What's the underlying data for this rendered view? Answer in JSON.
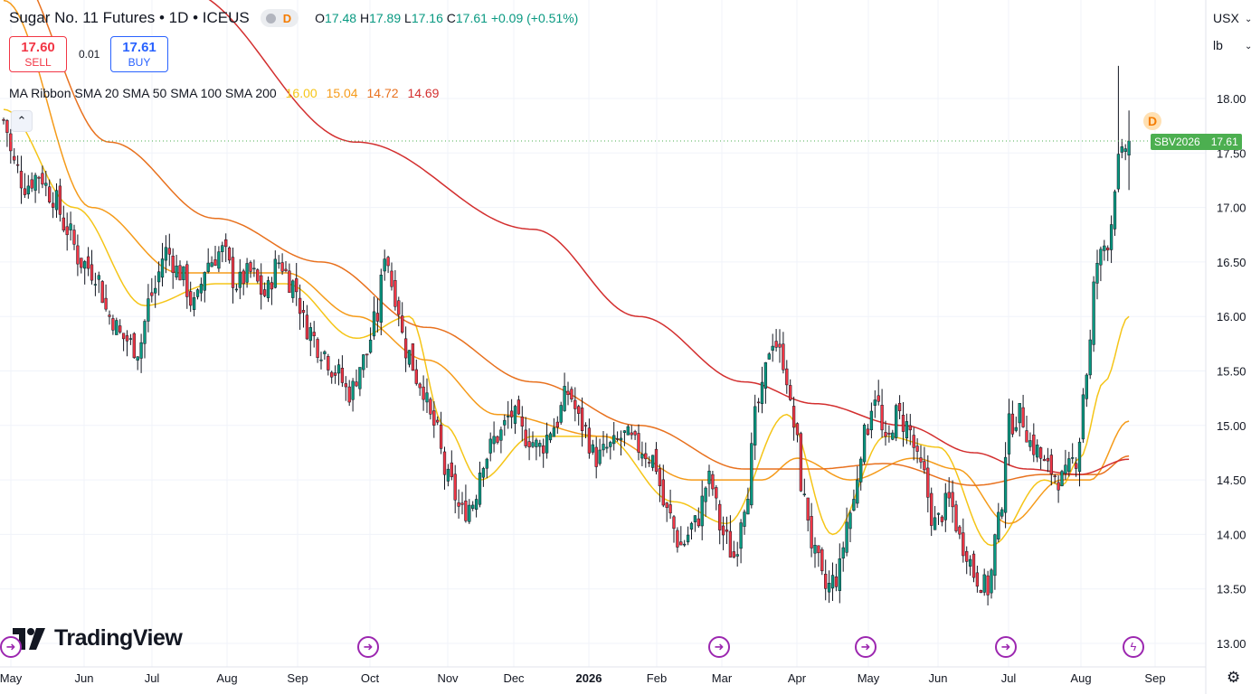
{
  "header": {
    "symbol_title": "Sugar No. 11 Futures • 1D • ICEUS",
    "delay_badge": "D",
    "ohlc": {
      "open_label": "O",
      "open": "17.48",
      "high_label": "H",
      "high": "17.89",
      "low_label": "L",
      "low": "17.16",
      "close_label": "C",
      "close": "17.61",
      "change": "+0.09 (+0.51%)"
    }
  },
  "trade": {
    "sell_price": "17.60",
    "sell_label": "SELL",
    "spread": "0.01",
    "buy_price": "17.61",
    "buy_label": "BUY"
  },
  "indicator": {
    "name": "MA Ribbon SMA 20 SMA 50 SMA 100 SMA 200",
    "values": [
      "16.00",
      "15.04",
      "14.72",
      "14.69"
    ],
    "colors": [
      "#f5c518",
      "#f59b1a",
      "#e8711e",
      "#d32f2f"
    ]
  },
  "price_scale": {
    "currency": "USX",
    "unit": "lb"
  },
  "price_tag": {
    "symbol": "SBV2026",
    "price": "17.61"
  },
  "logo_text": "TradingView",
  "dividend_marker": "D",
  "icons": [
    "collapse-up-icon",
    "event-arrow-icon",
    "flash-event-icon",
    "gear-icon",
    "chevron-down-icon"
  ],
  "colors": {
    "up": "#089981",
    "down": "#f23645",
    "price_line": "#4caf50",
    "event": "#9c27b0"
  },
  "chart_data": {
    "type": "candlestick",
    "title": "Sugar No. 11 Futures • 1D • ICEUS",
    "y_ticks": [
      13.0,
      13.5,
      14.0,
      14.5,
      15.0,
      15.5,
      16.0,
      16.5,
      17.0,
      17.5,
      18.0
    ],
    "y_tick_labels": [
      "13.00",
      "13.50",
      "14.00",
      "14.50",
      "15.00",
      "15.50",
      "16.00",
      "16.50",
      "17.00",
      "17.50",
      "18.00"
    ],
    "ylim": [
      12.75,
      18.75
    ],
    "x_labels": [
      "May",
      "Jun",
      "Jul",
      "Aug",
      "Sep",
      "Oct",
      "Nov",
      "Dec",
      "2026",
      "Feb",
      "Mar",
      "Apr",
      "May",
      "Jun",
      "Jul",
      "Aug",
      "Sep"
    ],
    "last_price": 17.61,
    "grid": true,
    "close_keypoints": [
      [
        0,
        17.8
      ],
      [
        3,
        17.4
      ],
      [
        6,
        17.2
      ],
      [
        10,
        17.3
      ],
      [
        14,
        17.1
      ],
      [
        18,
        16.8
      ],
      [
        22,
        16.5
      ],
      [
        26,
        16.4
      ],
      [
        30,
        16.0
      ],
      [
        34,
        15.8
      ],
      [
        38,
        15.7
      ],
      [
        42,
        16.2
      ],
      [
        46,
        16.6
      ],
      [
        50,
        16.4
      ],
      [
        54,
        16.1
      ],
      [
        58,
        16.5
      ],
      [
        62,
        16.6
      ],
      [
        66,
        16.3
      ],
      [
        70,
        16.4
      ],
      [
        74,
        16.2
      ],
      [
        78,
        16.5
      ],
      [
        82,
        16.3
      ],
      [
        86,
        15.9
      ],
      [
        90,
        15.7
      ],
      [
        94,
        15.5
      ],
      [
        98,
        15.3
      ],
      [
        102,
        15.6
      ],
      [
        106,
        16.0
      ],
      [
        108,
        16.6
      ],
      [
        111,
        16.2
      ],
      [
        114,
        15.7
      ],
      [
        118,
        15.4
      ],
      [
        122,
        15.0
      ],
      [
        126,
        14.5
      ],
      [
        130,
        14.2
      ],
      [
        133,
        14.3
      ],
      [
        136,
        14.7
      ],
      [
        140,
        14.9
      ],
      [
        144,
        15.1
      ],
      [
        148,
        14.9
      ],
      [
        152,
        14.8
      ],
      [
        156,
        15.0
      ],
      [
        160,
        15.3
      ],
      [
        164,
        15.0
      ],
      [
        168,
        14.7
      ],
      [
        172,
        14.8
      ],
      [
        176,
        14.9
      ],
      [
        180,
        14.8
      ],
      [
        184,
        14.7
      ],
      [
        188,
        14.2
      ],
      [
        192,
        13.9
      ],
      [
        196,
        14.1
      ],
      [
        200,
        14.5
      ],
      [
        204,
        14.0
      ],
      [
        207,
        13.8
      ],
      [
        210,
        14.3
      ],
      [
        214,
        15.2
      ],
      [
        218,
        15.8
      ],
      [
        221,
        15.6
      ],
      [
        224,
        15.0
      ],
      [
        227,
        14.3
      ],
      [
        230,
        13.8
      ],
      [
        233,
        13.5
      ],
      [
        236,
        13.6
      ],
      [
        240,
        14.2
      ],
      [
        244,
        14.9
      ],
      [
        247,
        15.3
      ],
      [
        250,
        14.8
      ],
      [
        253,
        15.1
      ],
      [
        256,
        15.0
      ],
      [
        260,
        14.6
      ],
      [
        264,
        14.1
      ],
      [
        268,
        14.3
      ],
      [
        272,
        13.9
      ],
      [
        276,
        13.6
      ],
      [
        279,
        13.5
      ],
      [
        282,
        14.1
      ],
      [
        285,
        15.0
      ],
      [
        288,
        15.1
      ],
      [
        292,
        14.8
      ],
      [
        296,
        14.6
      ],
      [
        300,
        14.5
      ],
      [
        304,
        14.7
      ],
      [
        307,
        15.5
      ],
      [
        310,
        16.5
      ],
      [
        313,
        16.7
      ],
      [
        316,
        17.4
      ],
      [
        319,
        17.61
      ]
    ],
    "ma_series": [
      {
        "name": "SMA 20",
        "color": "#f5c518",
        "keypoints": [
          [
            0,
            17.9
          ],
          [
            20,
            17.0
          ],
          [
            40,
            16.1
          ],
          [
            60,
            16.3
          ],
          [
            80,
            16.3
          ],
          [
            100,
            15.8
          ],
          [
            115,
            16.0
          ],
          [
            125,
            15.0
          ],
          [
            135,
            14.5
          ],
          [
            150,
            14.9
          ],
          [
            170,
            14.9
          ],
          [
            190,
            14.3
          ],
          [
            205,
            14.1
          ],
          [
            222,
            15.1
          ],
          [
            235,
            14.0
          ],
          [
            250,
            14.9
          ],
          [
            265,
            14.8
          ],
          [
            280,
            13.9
          ],
          [
            295,
            14.5
          ],
          [
            300,
            14.45
          ],
          [
            305,
            14.7
          ],
          [
            312,
            15.4
          ],
          [
            319,
            16.0
          ]
        ]
      },
      {
        "name": "SMA 50",
        "color": "#f59b1a",
        "keypoints": [
          [
            0,
            18.9
          ],
          [
            25,
            17.0
          ],
          [
            50,
            16.4
          ],
          [
            80,
            16.4
          ],
          [
            100,
            16.0
          ],
          [
            120,
            15.6
          ],
          [
            140,
            15.1
          ],
          [
            170,
            14.9
          ],
          [
            195,
            14.5
          ],
          [
            215,
            14.5
          ],
          [
            225,
            14.7
          ],
          [
            240,
            14.5
          ],
          [
            258,
            14.7
          ],
          [
            270,
            14.6
          ],
          [
            285,
            14.1
          ],
          [
            300,
            14.5
          ],
          [
            308,
            14.5
          ],
          [
            319,
            15.04
          ]
        ]
      },
      {
        "name": "SMA 100",
        "color": "#e8711e",
        "keypoints": [
          [
            0,
            19.3
          ],
          [
            30,
            17.6
          ],
          [
            60,
            16.9
          ],
          [
            90,
            16.5
          ],
          [
            120,
            15.9
          ],
          [
            150,
            15.4
          ],
          [
            180,
            15.0
          ],
          [
            210,
            14.6
          ],
          [
            230,
            14.6
          ],
          [
            250,
            14.65
          ],
          [
            275,
            14.45
          ],
          [
            295,
            14.55
          ],
          [
            310,
            14.55
          ],
          [
            319,
            14.72
          ]
        ]
      },
      {
        "name": "SMA 200",
        "color": "#d32f2f",
        "keypoints": [
          [
            0,
            20.6
          ],
          [
            50,
            19.0
          ],
          [
            100,
            17.6
          ],
          [
            150,
            16.8
          ],
          [
            180,
            16.0
          ],
          [
            210,
            15.4
          ],
          [
            230,
            15.2
          ],
          [
            255,
            15.0
          ],
          [
            275,
            14.75
          ],
          [
            290,
            14.6
          ],
          [
            305,
            14.55
          ],
          [
            319,
            14.69
          ]
        ]
      }
    ]
  }
}
